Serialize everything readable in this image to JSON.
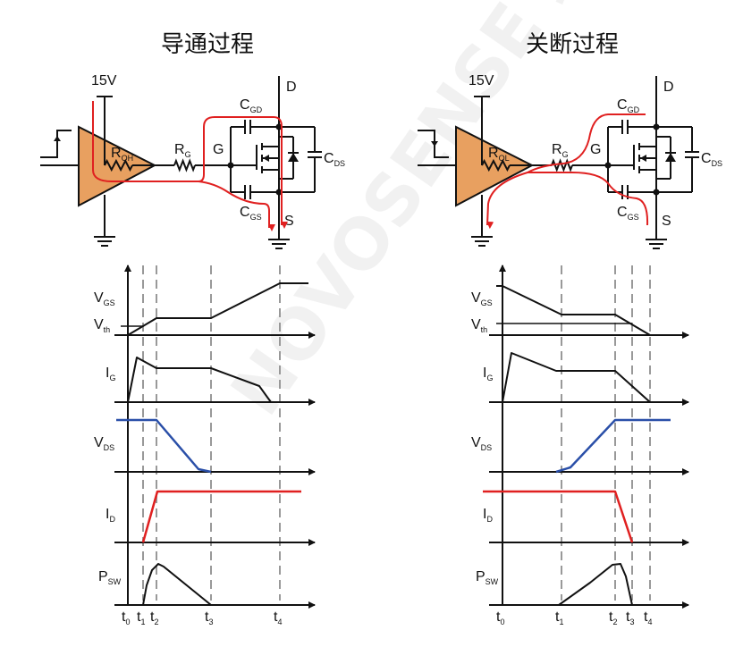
{
  "turn_on": {
    "title": "导通过程",
    "supply": "15V",
    "driver_resistor": {
      "main": "R",
      "sub": "OH"
    },
    "gate_resistor": {
      "main": "R",
      "sub": "G"
    },
    "node_d": "D",
    "node_g": "G",
    "node_s": "S",
    "cgd": {
      "main": "C",
      "sub": "GD"
    },
    "cgs": {
      "main": "C",
      "sub": "GS"
    },
    "cds": {
      "main": "C",
      "sub": "DS"
    },
    "signals": {
      "vgs": {
        "main": "V",
        "sub": "GS"
      },
      "vth": {
        "main": "V",
        "sub": "th"
      },
      "ig": {
        "main": "I",
        "sub": "G"
      },
      "vds": {
        "main": "V",
        "sub": "DS"
      },
      "id": {
        "main": "I",
        "sub": "D"
      },
      "psw": {
        "main": "P",
        "sub": "SW"
      }
    },
    "times": [
      {
        "main": "t",
        "sub": "0"
      },
      {
        "main": "t",
        "sub": "1"
      },
      {
        "main": "t",
        "sub": "2"
      },
      {
        "main": "t",
        "sub": "3"
      },
      {
        "main": "t",
        "sub": "4"
      }
    ]
  },
  "turn_off": {
    "title": "关断过程",
    "supply": "15V",
    "driver_resistor": {
      "main": "R",
      "sub": "OL"
    },
    "gate_resistor": {
      "main": "R",
      "sub": "G"
    },
    "node_d": "D",
    "node_g": "G",
    "node_s": "S",
    "cgd": {
      "main": "C",
      "sub": "GD"
    },
    "cgs": {
      "main": "C",
      "sub": "GS"
    },
    "cds": {
      "main": "C",
      "sub": "DS"
    },
    "signals": {
      "vgs": {
        "main": "V",
        "sub": "GS"
      },
      "vth": {
        "main": "V",
        "sub": "th"
      },
      "ig": {
        "main": "I",
        "sub": "G"
      },
      "vds": {
        "main": "V",
        "sub": "DS"
      },
      "id": {
        "main": "I",
        "sub": "D"
      },
      "psw": {
        "main": "P",
        "sub": "SW"
      }
    },
    "times": [
      {
        "main": "t",
        "sub": "0"
      },
      {
        "main": "t",
        "sub": "1"
      },
      {
        "main": "t",
        "sub": "2"
      },
      {
        "main": "t",
        "sub": "3"
      },
      {
        "main": "t",
        "sub": "4"
      }
    ]
  },
  "watermark": "NOVOSENSE 纳芯微电子",
  "colors": {
    "driver_fill": "#E8A060",
    "current_path": "#E02020",
    "vds": "#2A4FA8",
    "id": "#E02020",
    "line": "#111111",
    "dash": "#999999"
  }
}
